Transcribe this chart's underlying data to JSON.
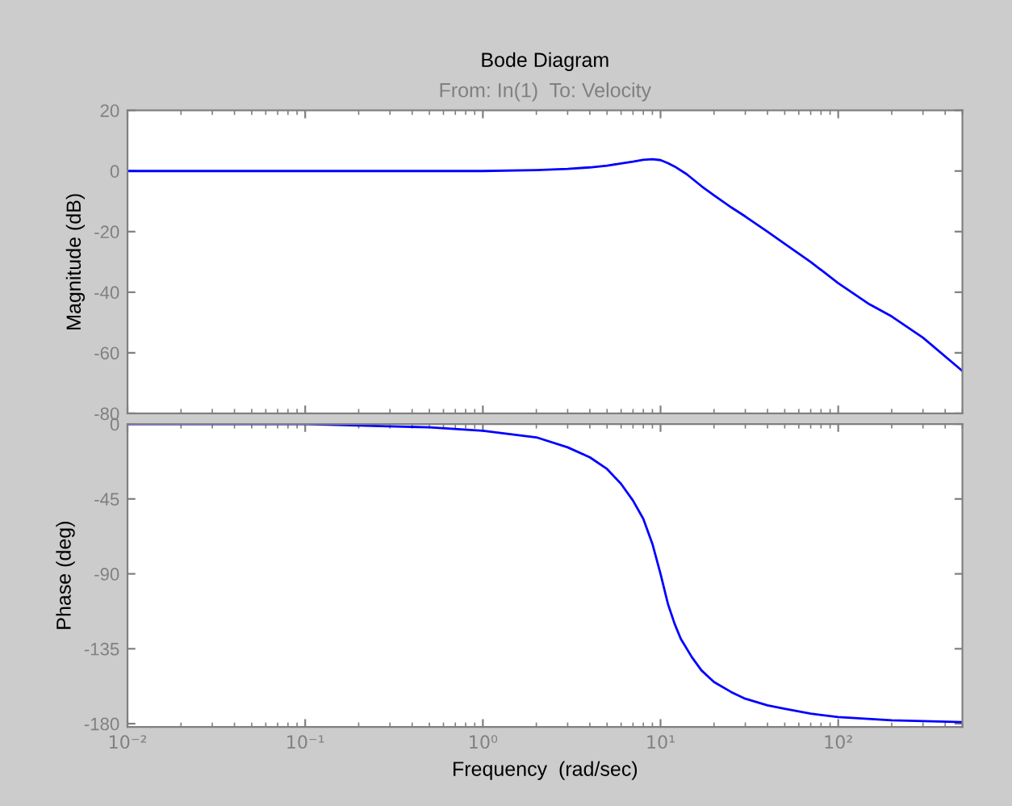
{
  "chart_data": [
    {
      "type": "line",
      "title": "Bode Diagram",
      "subtitle": "From: In(1)  To: Velocity",
      "ylabel": "Magnitude (dB)",
      "log": "x",
      "grid": false,
      "xlim": [
        0.01,
        500
      ],
      "tick_labels": "y",
      "xticks": [
        0.01,
        0.1,
        1,
        10,
        100
      ],
      "ylim": [
        -80,
        20
      ],
      "yticks": [
        -80,
        -60,
        -40,
        -20,
        0,
        20
      ],
      "series": [
        {
          "color": "#0000ff",
          "x": [
            0.01,
            0.1,
            1,
            2,
            3,
            4,
            5,
            6,
            7,
            8,
            9,
            10,
            11,
            12,
            14,
            17,
            20,
            25,
            30,
            40,
            50,
            70,
            100,
            150,
            200,
            300,
            500
          ],
          "values": [
            0,
            0,
            0,
            0.3,
            0.7,
            1.2,
            1.8,
            2.5,
            3.1,
            3.7,
            3.9,
            3.6,
            2.6,
            1.5,
            -1,
            -5,
            -8,
            -12,
            -15,
            -20,
            -24,
            -30,
            -37,
            -44,
            -48,
            -55,
            -66
          ]
        }
      ]
    },
    {
      "type": "line",
      "xlabel": "Frequency  (rad/sec)",
      "ylabel": "Phase (deg)",
      "log": "x",
      "grid": false,
      "xlim": [
        0.01,
        500
      ],
      "xticks": [
        {
          "value": 0.01,
          "label": "10⁻²"
        },
        {
          "value": 0.1,
          "label": "10⁻¹"
        },
        {
          "value": 1,
          "label": "10⁰"
        },
        {
          "value": 10,
          "label": "10¹"
        },
        {
          "value": 100,
          "label": "10²"
        }
      ],
      "ylim": [
        -182,
        0
      ],
      "yticks": [
        -180,
        -135,
        -90,
        -45,
        0
      ],
      "series": [
        {
          "color": "#0000ff",
          "x": [
            0.01,
            0.1,
            0.5,
            1,
            2,
            3,
            4,
            5,
            6,
            7,
            8,
            9,
            10,
            11,
            12,
            13,
            15,
            17,
            20,
            25,
            30,
            40,
            50,
            70,
            100,
            200,
            500
          ],
          "values": [
            0,
            0,
            -2,
            -4,
            -8,
            -14,
            -20,
            -27,
            -36,
            -46,
            -57,
            -72,
            -90,
            -108,
            -120,
            -129,
            -140,
            -148,
            -155,
            -161,
            -165,
            -169,
            -171,
            -174,
            -176,
            -178,
            -179
          ]
        }
      ]
    }
  ]
}
